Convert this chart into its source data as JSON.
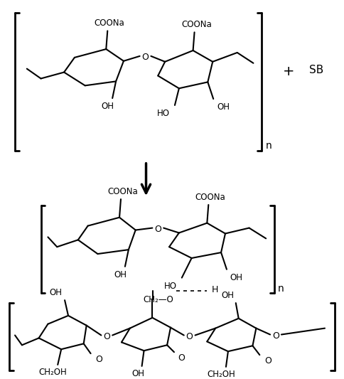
{
  "background_color": "#ffffff",
  "line_color": "#000000",
  "text_color": "#000000",
  "figsize": [
    4.84,
    5.33
  ],
  "dpi": 100,
  "labels": {
    "COONa": "COONa",
    "OH": "OH",
    "HO": "HO",
    "n": "n",
    "plus": "+",
    "SB": "SB",
    "O": "O",
    "CH2OH": "CH₂OH",
    "CH2_O": "CH₂—O",
    "H": "H"
  }
}
